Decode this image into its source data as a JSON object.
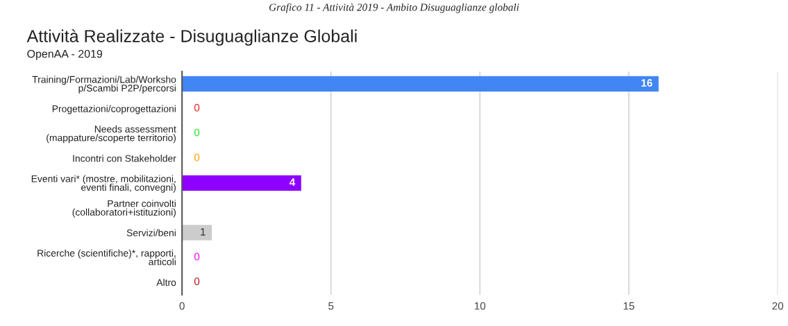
{
  "chart_data": {
    "type": "bar",
    "orientation": "horizontal",
    "title": "Attività Realizzate - Disuguaglianze Globali",
    "subtitle": "OpenAA - 2019",
    "annotations": [
      "Grafico 11 - Attività 2019 - Ambito Disuguaglianze globali"
    ],
    "categories": [
      "Training/Formazioni/Lab/Worksho\np/Scambi P2P/percorsi",
      "Progettazioni/coprogettazioni",
      "Needs assessment\n(mappature/scoperte territorio)",
      "Incontri con Stakeholder",
      "Eventi vari* (mostre, mobilitazioni,\neventi finali, convegni)",
      "Partner coinvolti\n(collaboratori+istituzioni)",
      "Servizi/beni",
      "Ricerche (scientifiche)*, rapporti,\narticoli",
      "Altro"
    ],
    "values": [
      16,
      0,
      0,
      0,
      4,
      null,
      1,
      0,
      0
    ],
    "value_labels": [
      "16",
      "0",
      "0",
      "0",
      "4",
      null,
      "1",
      "0",
      "0"
    ],
    "colors": [
      "#4285f4",
      "#e8262a",
      "#1fe01f",
      "#ff9f00",
      "#8e00ff",
      "#0099c6",
      "#cccccc",
      "#ff00ff",
      "#b3141a"
    ],
    "xlim": [
      0,
      20
    ],
    "xticks": [
      0,
      5,
      10,
      15,
      20
    ],
    "grid": "x",
    "legend": false
  }
}
